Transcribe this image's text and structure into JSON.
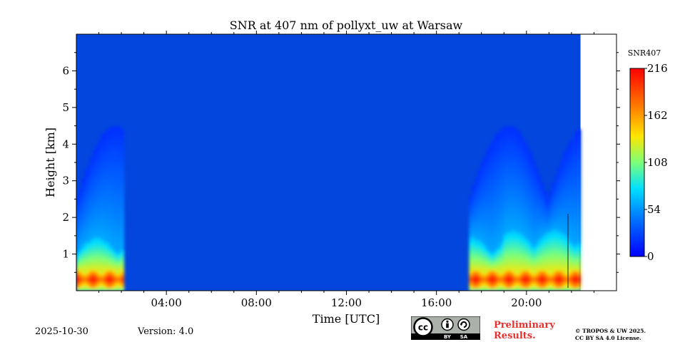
{
  "chart_data": {
    "type": "heatmap",
    "title": "SNR at 407 nm of pollyxt_uw at Warsaw",
    "xlabel": "Time [UTC]",
    "ylabel": "Height [km]",
    "x_unit": "hours UTC",
    "xlim": [
      0,
      24
    ],
    "ylim": [
      0,
      7
    ],
    "x_ticks": [
      4,
      8,
      12,
      16,
      20
    ],
    "x_tick_labels": [
      "04:00",
      "08:00",
      "12:00",
      "16:00",
      "20:00"
    ],
    "y_ticks": [
      1,
      2,
      3,
      4,
      5,
      6
    ],
    "y_tick_labels": [
      "1",
      "2",
      "3",
      "4",
      "5",
      "6"
    ],
    "data_end_hour": 22.4,
    "data_segments": [
      {
        "start": 0.0,
        "end": 2.1
      },
      {
        "start": 17.45,
        "end": 22.4
      }
    ],
    "colorbar": {
      "label": "SNR407",
      "min": 0,
      "max": 216,
      "ticks": [
        0,
        54,
        108,
        162,
        216
      ],
      "tick_labels": [
        "0",
        "54",
        "108",
        "162",
        "216"
      ],
      "colormap": "jet"
    },
    "profile_features": {
      "peak_height_km": 0.32,
      "strong_layer_top_km": 1.0,
      "weak_signal_top_km": 4.5
    }
  },
  "footer": {
    "date": "2025-10-30",
    "version": "Version: 4.0",
    "preliminary_line1": "Preliminary",
    "preliminary_line2": "Results.",
    "copyright_line1": "© TROPOS & UW 2025.",
    "copyright_line2": "CC BY SA 4.0 License.",
    "badge_cc": "cc",
    "badge_by": "BY",
    "badge_sa": "SA"
  },
  "colors": {
    "background_blue": "#0246dd",
    "page": "#ffffff"
  }
}
